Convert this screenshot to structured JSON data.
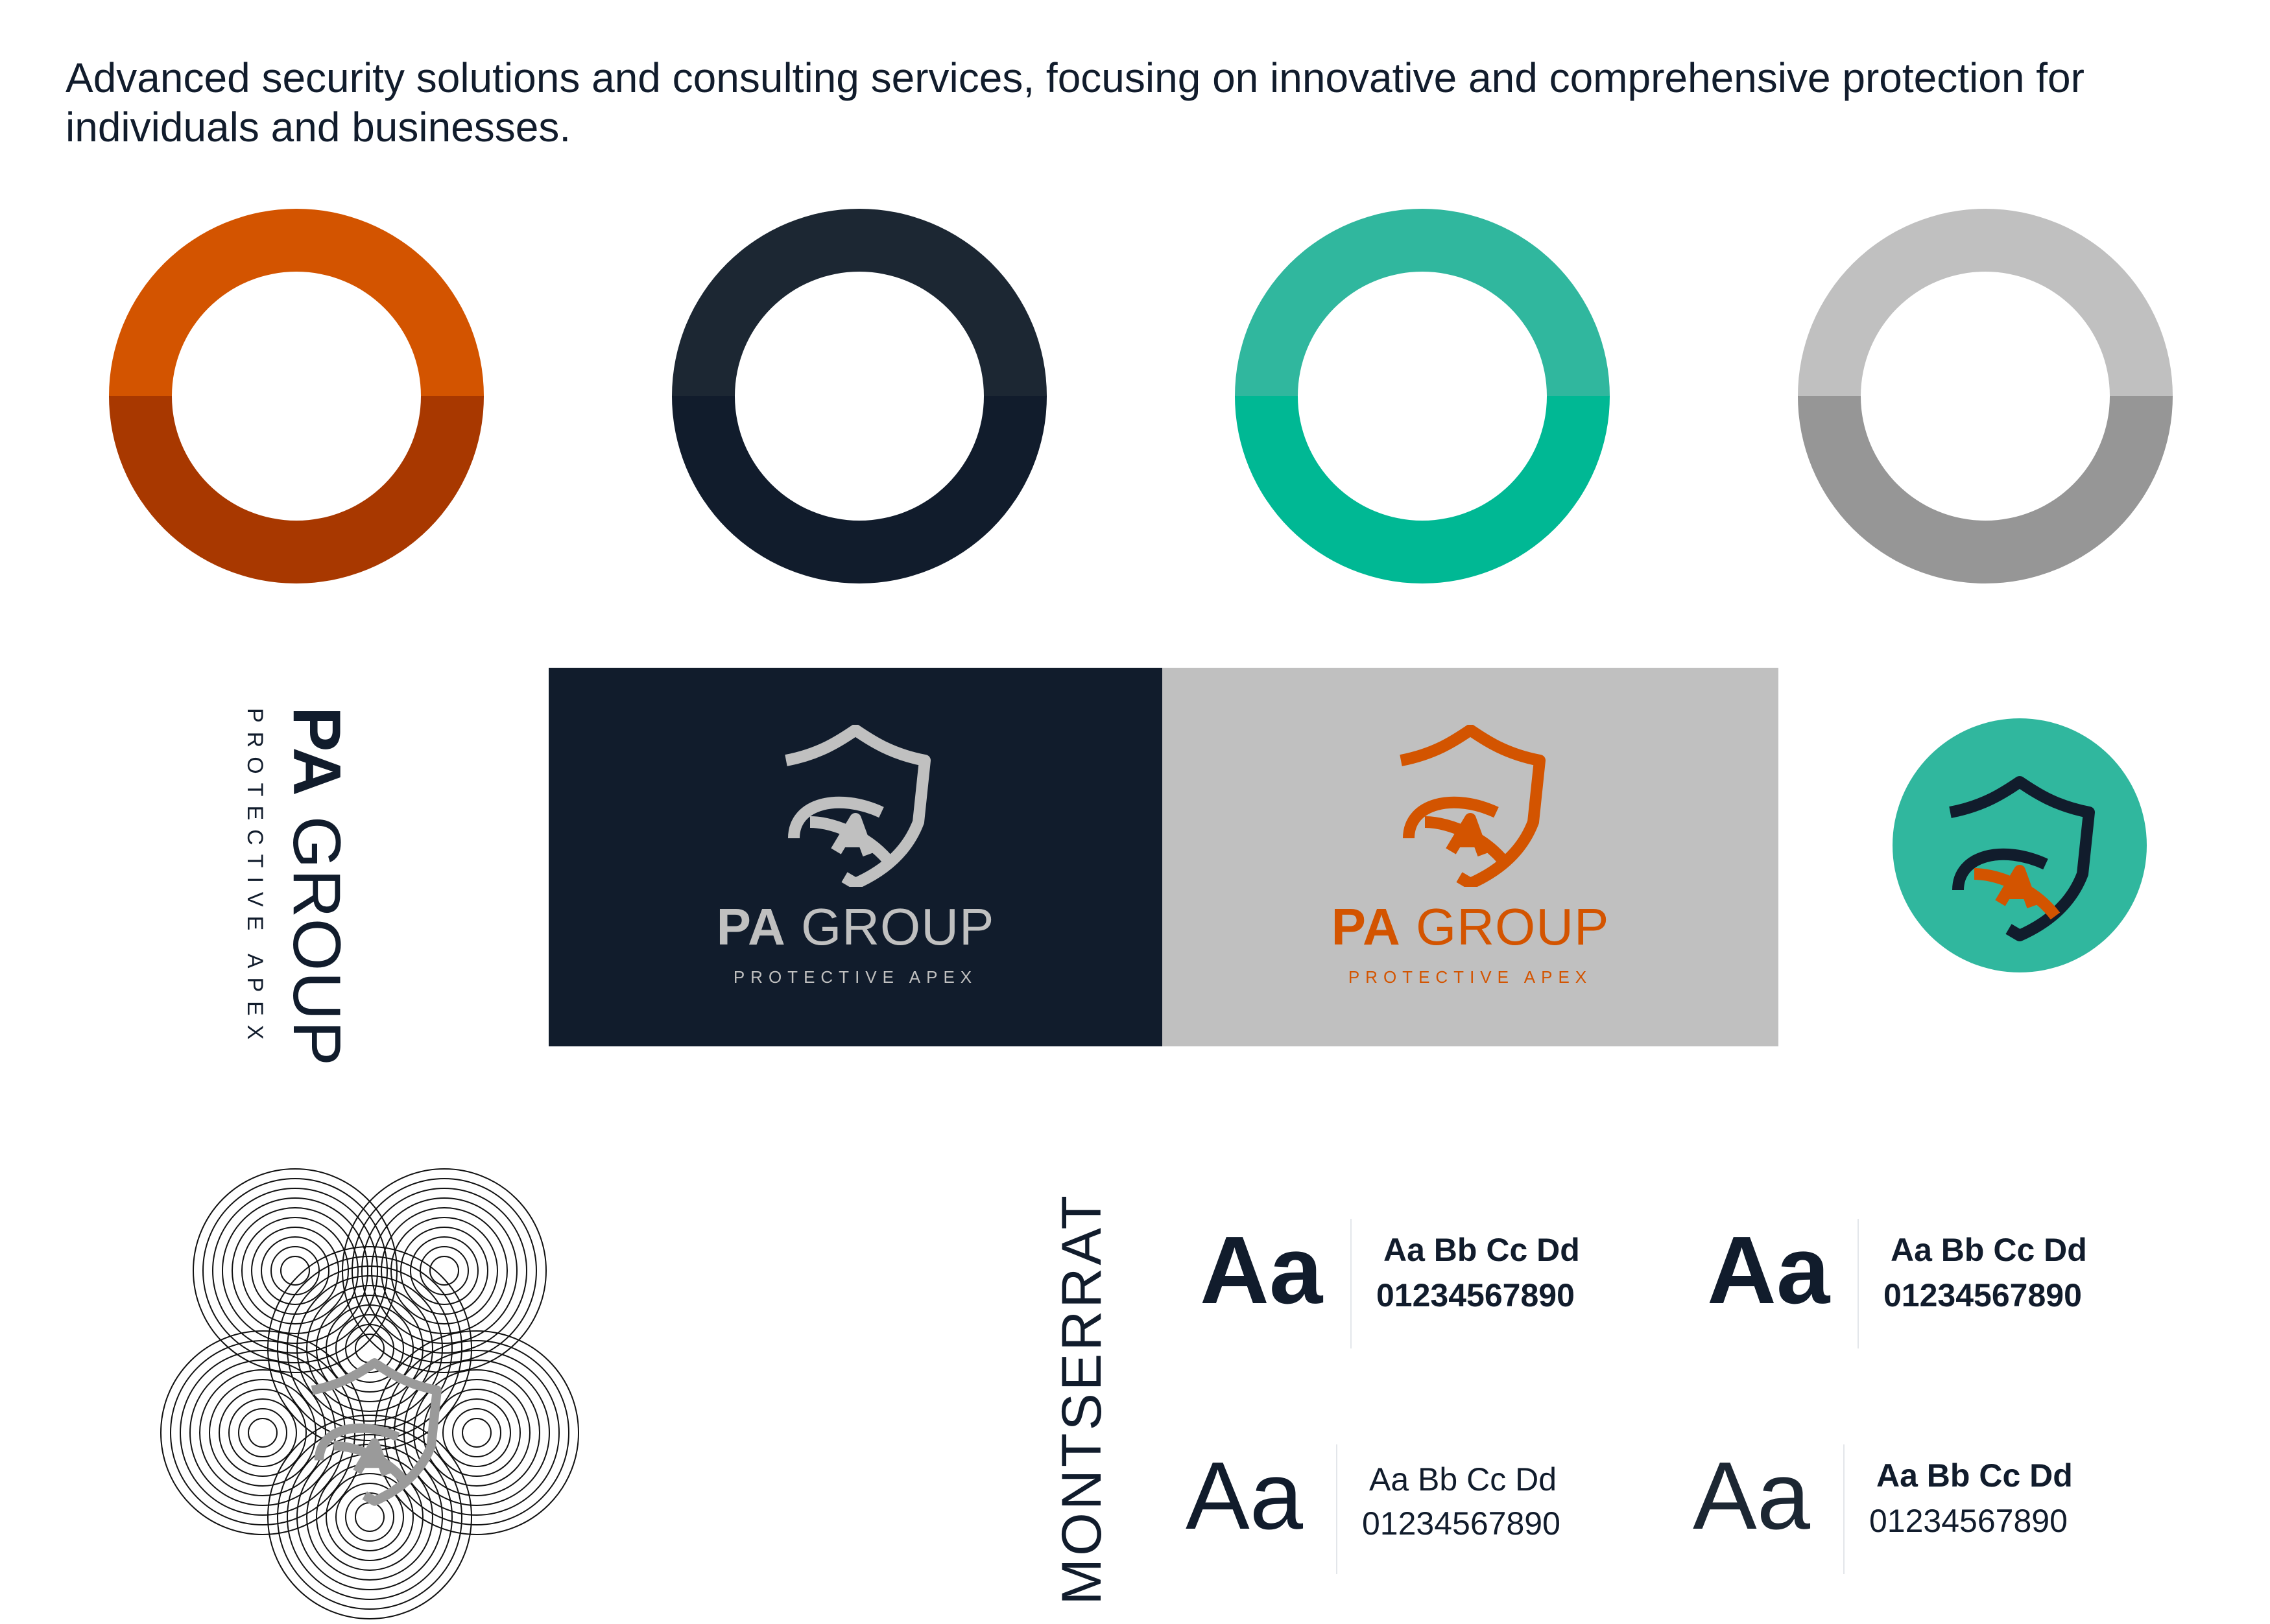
{
  "tagline": "Advanced security solutions and consulting services, focusing on innovative and comprehensive protection for individuals and businesses.",
  "palette": [
    {
      "name": "orange",
      "top": "#d35400",
      "bottom": "#a83800"
    },
    {
      "name": "navy",
      "top": "#1c2733",
      "bottom": "#111c2c"
    },
    {
      "name": "teal",
      "top": "#30b79e",
      "bottom": "#00b894"
    },
    {
      "name": "grey",
      "top": "#c0c0c0",
      "bottom": "#969696"
    }
  ],
  "brand": {
    "name_bold": "PA",
    "name_light": "GROUP",
    "subtitle": "PROTECTIVE APEX"
  },
  "panels": {
    "dark": {
      "bg": "#111c2c",
      "fg": "#c0c0c0"
    },
    "grey": {
      "bg": "#c0c0c0",
      "fg": "#d35400"
    }
  },
  "round_icon": {
    "bg": "#30b79e",
    "outline": "#111c2c",
    "accent": "#d35400"
  },
  "typography": {
    "font_name": "MONTSERRAT",
    "samples": [
      {
        "big": "Aa",
        "line1": "Aa Bb Cc Dd",
        "line2": "01234567890",
        "weight": "bold"
      },
      {
        "big": "Aa",
        "line1": "Aa Bb Cc Dd",
        "line2": "01234567890",
        "weight": "semibold"
      },
      {
        "big": "Aa",
        "line1": "Aa Bb Cc Dd",
        "line2": "01234567890",
        "weight": "medium"
      },
      {
        "big": "Aa",
        "line1": "Aa Bb Cc Dd",
        "line2": "01234567890",
        "weight": "light"
      }
    ]
  }
}
